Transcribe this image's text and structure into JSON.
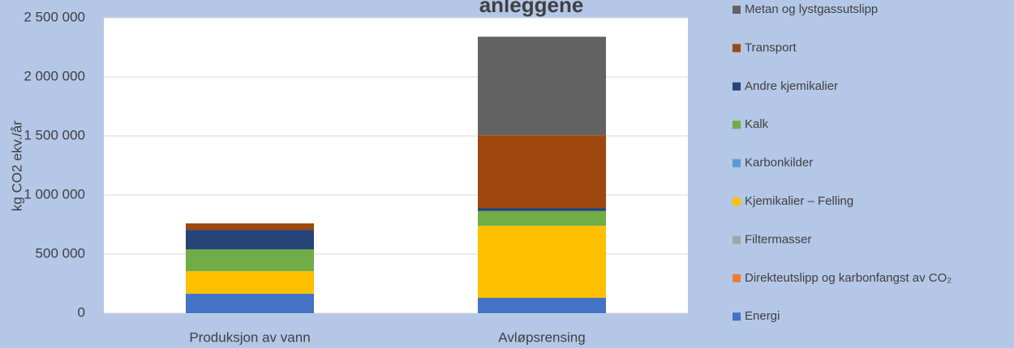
{
  "chart_data": {
    "type": "stacked_bar",
    "title": "anleggene",
    "y_label": "kg CO2 ekv./år",
    "categories": [
      "Produksjon av vann",
      "Avløpsrensing"
    ],
    "series": [
      {
        "name": "Energi",
        "color": "#4472c4",
        "values": [
          165000,
          130000
        ]
      },
      {
        "name": "Direkteutslipp og karbonfangst av CO₂",
        "color": "#ed7d31",
        "values": [
          0,
          0
        ]
      },
      {
        "name": "Filtermasser",
        "color": "#a5a5a5",
        "values": [
          0,
          0
        ]
      },
      {
        "name": "Kjemikalier – Felling",
        "color": "#ffc000",
        "values": [
          190000,
          610000
        ]
      },
      {
        "name": "Karbonkilder",
        "color": "#5b9bd5",
        "values": [
          0,
          0
        ]
      },
      {
        "name": "Kalk",
        "color": "#70ad47",
        "values": [
          185000,
          125000
        ]
      },
      {
        "name": "Andre kjemikalier",
        "color": "#264478",
        "values": [
          165000,
          25000
        ]
      },
      {
        "name": "Transport",
        "color": "#9e480e",
        "values": [
          55000,
          615000
        ]
      },
      {
        "name": "Metan og lystgassutslipp",
        "color": "#636363",
        "values": [
          0,
          835000
        ]
      }
    ],
    "ylim": [
      0,
      2500000
    ],
    "yticks": [
      0,
      {
        "value": 500000,
        "label": "500 000"
      },
      {
        "value": 1000000,
        "label": "1 000 000"
      },
      {
        "value": 1500000,
        "label": "1 500 000"
      },
      {
        "value": 2000000,
        "label": "2 000 000"
      },
      {
        "value": 2500000,
        "label": "2 500 000"
      }
    ],
    "grid": true,
    "legend": "right"
  }
}
